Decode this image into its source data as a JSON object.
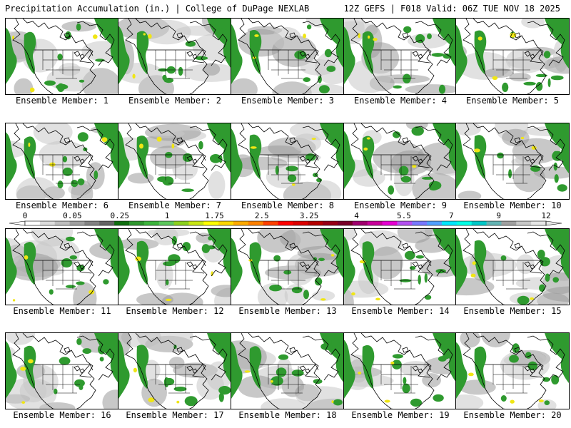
{
  "header": {
    "left_title": "Precipitation Accumulation (in.) | College of DuPage NEXLAB",
    "right_title": "12Z GEFS | F018 Valid: 06Z TUE NOV 18 2025"
  },
  "panels": [
    {
      "label": "Ensemble Member: 1"
    },
    {
      "label": "Ensemble Member: 2"
    },
    {
      "label": "Ensemble Member: 3"
    },
    {
      "label": "Ensemble Member: 4"
    },
    {
      "label": "Ensemble Member: 5"
    },
    {
      "label": "Ensemble Member: 6"
    },
    {
      "label": "Ensemble Member: 7"
    },
    {
      "label": "Ensemble Member: 8"
    },
    {
      "label": "Ensemble Member: 9"
    },
    {
      "label": "Ensemble Member: 10"
    },
    {
      "label": "Ensemble Member: 11"
    },
    {
      "label": "Ensemble Member: 12"
    },
    {
      "label": "Ensemble Member: 13"
    },
    {
      "label": "Ensemble Member: 14"
    },
    {
      "label": "Ensemble Member: 15"
    },
    {
      "label": "Ensemble Member: 16"
    },
    {
      "label": "Ensemble Member: 17"
    },
    {
      "label": "Ensemble Member: 18"
    },
    {
      "label": "Ensemble Member: 19"
    },
    {
      "label": "Ensemble Member: 20"
    }
  ],
  "colorbar": {
    "tick_labels": [
      "0",
      "0.05",
      "0.25",
      "1",
      "1.75",
      "2.5",
      "3.25",
      "4",
      "5.5",
      "7",
      "9",
      "12"
    ],
    "colors": [
      "#ffffff",
      "#dcdcdc",
      "#bebebe",
      "#a0a0a0",
      "#828282",
      "#646464",
      "#0f6e0f",
      "#2d962d",
      "#3cb43c",
      "#5cc85c",
      "#8cd21e",
      "#c8e614",
      "#ffff00",
      "#ffd700",
      "#ffaa00",
      "#ff8000",
      "#ff4000",
      "#ff0000",
      "#dc0000",
      "#b40000",
      "#960014",
      "#780028",
      "#a0006e",
      "#c8009a",
      "#e600d2",
      "#b450f0",
      "#7878ff",
      "#50a0ff",
      "#00e6ff",
      "#00ffe6",
      "#00c8c8",
      "#64b4b4",
      "#a0a0a0",
      "#c8c8c8",
      "#e6e6e6"
    ]
  },
  "colors": {
    "light_precip": "#c8c8c8",
    "mid_precip": "#9a9a9a",
    "green_precip": "#2f9a2f",
    "dark_green": "#0f6e0f",
    "yellow_precip": "#f0e614"
  }
}
